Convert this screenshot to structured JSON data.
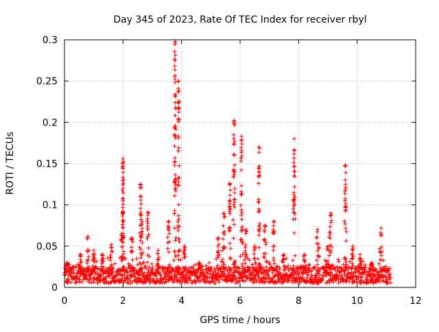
{
  "chart_data": {
    "type": "scatter",
    "title": "Day 345 of 2023, Rate Of TEC Index for receiver rbyl",
    "xlabel": "GPS time / hours",
    "ylabel": "ROTI / TECUs",
    "xlim": [
      0,
      12
    ],
    "ylim": [
      0,
      0.3
    ],
    "x_ticks": [
      0,
      2,
      4,
      6,
      8,
      10,
      12
    ],
    "y_ticks": [
      0,
      0.05,
      0.1,
      0.15,
      0.2,
      0.25,
      0.3
    ],
    "x_tick_labels": [
      "0",
      "2",
      "4",
      "6",
      "8",
      "10",
      "12"
    ],
    "y_tick_labels": [
      "0",
      "0.05",
      "0.1",
      "0.15",
      "0.2",
      "0.25",
      "0.3"
    ],
    "grid": true,
    "marker": "+",
    "series": [
      {
        "name": "ROTI rbyl",
        "color": "#ff0000",
        "x_range": [
          0,
          11.15
        ],
        "baseline_band": [
          0.005,
          0.025
        ],
        "peaks": [
          {
            "x": 0.1,
            "y": 0.03
          },
          {
            "x": 0.55,
            "y": 0.04
          },
          {
            "x": 0.8,
            "y": 0.062
          },
          {
            "x": 1.0,
            "y": 0.045
          },
          {
            "x": 1.3,
            "y": 0.04
          },
          {
            "x": 1.6,
            "y": 0.052
          },
          {
            "x": 1.95,
            "y": 0.065
          },
          {
            "x": 2.0,
            "y": 0.156
          },
          {
            "x": 2.0,
            "y": 0.105
          },
          {
            "x": 2.3,
            "y": 0.06
          },
          {
            "x": 2.6,
            "y": 0.125
          },
          {
            "x": 2.65,
            "y": 0.08
          },
          {
            "x": 2.85,
            "y": 0.091
          },
          {
            "x": 3.2,
            "y": 0.045
          },
          {
            "x": 3.55,
            "y": 0.08
          },
          {
            "x": 3.78,
            "y": 0.298
          },
          {
            "x": 3.9,
            "y": 0.25
          },
          {
            "x": 4.1,
            "y": 0.05
          },
          {
            "x": 4.6,
            "y": 0.03
          },
          {
            "x": 5.25,
            "y": 0.06
          },
          {
            "x": 5.45,
            "y": 0.09
          },
          {
            "x": 5.65,
            "y": 0.126
          },
          {
            "x": 5.8,
            "y": 0.202
          },
          {
            "x": 6.05,
            "y": 0.183
          },
          {
            "x": 6.2,
            "y": 0.07
          },
          {
            "x": 6.5,
            "y": 0.05
          },
          {
            "x": 6.65,
            "y": 0.17
          },
          {
            "x": 6.85,
            "y": 0.075
          },
          {
            "x": 7.15,
            "y": 0.08
          },
          {
            "x": 7.5,
            "y": 0.04
          },
          {
            "x": 7.85,
            "y": 0.18
          },
          {
            "x": 8.2,
            "y": 0.04
          },
          {
            "x": 8.65,
            "y": 0.07
          },
          {
            "x": 9.0,
            "y": 0.05
          },
          {
            "x": 9.1,
            "y": 0.09
          },
          {
            "x": 9.6,
            "y": 0.148
          },
          {
            "x": 9.85,
            "y": 0.05
          },
          {
            "x": 10.1,
            "y": 0.04
          },
          {
            "x": 10.5,
            "y": 0.03
          },
          {
            "x": 10.82,
            "y": 0.072
          },
          {
            "x": 11.0,
            "y": 0.02
          }
        ]
      }
    ]
  }
}
